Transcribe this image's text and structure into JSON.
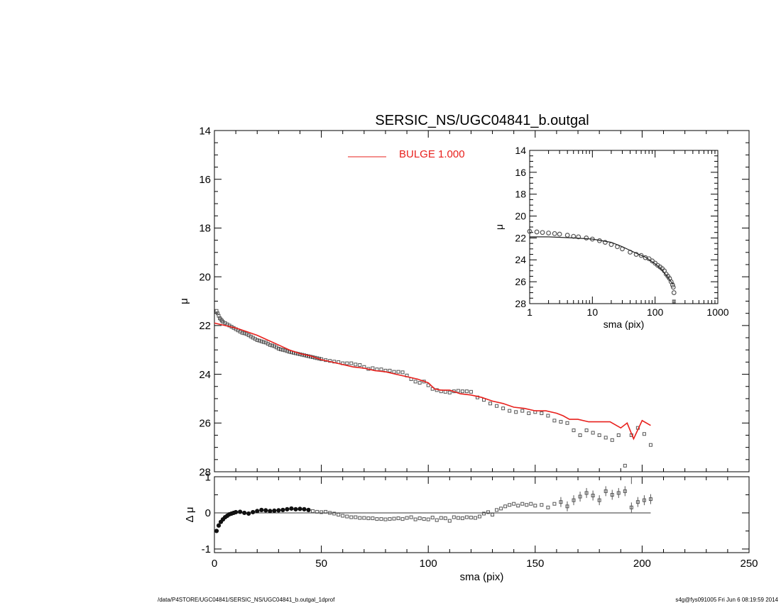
{
  "title": "SERSIC_NS/UGC04841_b.outgal",
  "footer": {
    "left": "/data/P4STORE/UGC04841/SERSIC_NS/UGC04841_b.outgal_1dprof",
    "right": "s4g@fys091005  Fri Jun  6 08:19:59 2014"
  },
  "colors": {
    "data": "#555555",
    "model": "#e8201c",
    "axis": "#000000"
  },
  "chart_data": [
    {
      "id": "main",
      "type": "scatter",
      "xlabel": "",
      "ylabel": "μ",
      "xlim": [
        0,
        250
      ],
      "ylim": [
        28,
        14
      ],
      "xticks": [
        0,
        50,
        100,
        150,
        200,
        250
      ],
      "yticks": [
        14,
        16,
        18,
        20,
        22,
        24,
        26,
        28
      ],
      "legend": {
        "label": "BULGE  1.000",
        "placement": "top-center"
      },
      "series": [
        {
          "role": "observed",
          "marker": "square",
          "x": [
            1,
            1.5,
            2,
            2.5,
            3,
            3.5,
            4,
            5,
            6,
            7,
            8,
            9,
            10,
            11,
            12,
            13,
            14,
            15,
            16,
            17,
            18,
            19,
            20,
            21,
            22,
            23,
            24,
            25,
            26,
            27,
            28,
            29,
            30,
            31,
            32,
            33,
            34,
            35,
            36,
            37,
            38,
            39,
            40,
            41,
            42,
            43,
            44,
            45,
            46,
            47,
            48,
            49,
            50,
            52,
            54,
            56,
            58,
            60,
            62,
            64,
            66,
            68,
            70,
            72,
            74,
            76,
            78,
            80,
            82,
            84,
            86,
            88,
            90,
            92,
            94,
            96,
            98,
            100,
            102,
            104,
            106,
            108,
            110,
            112,
            114,
            116,
            118,
            120,
            123,
            126,
            129,
            132,
            135,
            138,
            141,
            144,
            147,
            150,
            153,
            156,
            159,
            162,
            165,
            168,
            171,
            174,
            177,
            180,
            183,
            186,
            189,
            192,
            195,
            198,
            201,
            204
          ],
          "y": [
            21.4,
            21.5,
            21.6,
            21.7,
            21.75,
            21.8,
            21.85,
            21.9,
            21.95,
            22.0,
            22.05,
            22.1,
            22.15,
            22.2,
            22.25,
            22.3,
            22.32,
            22.35,
            22.4,
            22.45,
            22.5,
            22.55,
            22.6,
            22.62,
            22.65,
            22.68,
            22.7,
            22.75,
            22.8,
            22.82,
            22.85,
            22.9,
            22.95,
            22.98,
            23.0,
            23.02,
            23.05,
            23.08,
            23.1,
            23.12,
            23.14,
            23.16,
            23.18,
            23.2,
            23.22,
            23.24,
            23.26,
            23.28,
            23.3,
            23.32,
            23.34,
            23.36,
            23.38,
            23.42,
            23.45,
            23.48,
            23.5,
            23.55,
            23.55,
            23.55,
            23.6,
            23.62,
            23.7,
            23.78,
            23.75,
            23.8,
            23.8,
            23.85,
            23.85,
            23.9,
            23.9,
            23.92,
            24.05,
            24.2,
            24.3,
            24.35,
            24.3,
            24.45,
            24.6,
            24.65,
            24.7,
            24.72,
            24.75,
            24.7,
            24.68,
            24.7,
            24.7,
            24.72,
            24.95,
            25.05,
            25.2,
            25.3,
            25.4,
            25.5,
            25.55,
            25.5,
            25.6,
            25.55,
            25.6,
            25.7,
            25.9,
            25.95,
            26.0,
            26.3,
            26.5,
            26.3,
            26.4,
            26.5,
            26.6,
            26.7,
            26.5,
            27.75,
            26.5,
            26.2,
            26.45,
            26.9
          ]
        },
        {
          "role": "model",
          "name": "BULGE  1.000",
          "x": [
            0,
            5,
            10,
            15,
            20,
            25,
            30,
            35,
            40,
            45,
            50,
            55,
            60,
            65,
            70,
            75,
            80,
            85,
            90,
            95,
            100,
            103,
            106,
            110,
            115,
            120,
            125,
            130,
            135,
            140,
            145,
            150,
            155,
            160,
            163,
            166,
            170,
            175,
            180,
            185,
            190,
            193,
            196,
            200,
            204
          ],
          "y": [
            21.9,
            22.0,
            22.1,
            22.25,
            22.4,
            22.6,
            22.8,
            23.0,
            23.15,
            23.25,
            23.4,
            23.5,
            23.6,
            23.7,
            23.75,
            23.85,
            23.9,
            24.0,
            24.1,
            24.2,
            24.35,
            24.6,
            24.65,
            24.65,
            24.8,
            24.85,
            24.95,
            25.1,
            25.2,
            25.35,
            25.4,
            25.5,
            25.5,
            25.6,
            25.7,
            25.85,
            25.85,
            25.95,
            25.95,
            25.95,
            26.2,
            26.0,
            26.65,
            25.9,
            26.1
          ]
        }
      ]
    },
    {
      "id": "residual",
      "type": "scatter",
      "xlabel": "sma (pix)",
      "ylabel": "Δ μ",
      "xlim": [
        0,
        250
      ],
      "ylim": [
        -1.1,
        1.0
      ],
      "xticks": [
        0,
        50,
        100,
        150,
        200,
        250
      ],
      "yticks": [
        -1,
        0,
        1
      ],
      "reference_line": 0,
      "series": [
        {
          "role": "residual",
          "marker": "square",
          "x": [
            1,
            2,
            3,
            4,
            5,
            6,
            7,
            8,
            9,
            10,
            12,
            14,
            16,
            18,
            20,
            22,
            24,
            26,
            28,
            30,
            32,
            34,
            36,
            38,
            40,
            42,
            44,
            46,
            48,
            50,
            52,
            54,
            56,
            58,
            60,
            62,
            64,
            66,
            68,
            70,
            72,
            74,
            76,
            78,
            80,
            82,
            84,
            86,
            88,
            90,
            92,
            94,
            96,
            98,
            100,
            102,
            104,
            106,
            108,
            110,
            112,
            114,
            116,
            118,
            120,
            122,
            124,
            126,
            128,
            130,
            132,
            134,
            136,
            138,
            140,
            142,
            144,
            146,
            148,
            150,
            153,
            156,
            159,
            162,
            165,
            168,
            171,
            174,
            177,
            180,
            183,
            186,
            189,
            192,
            195,
            198,
            201,
            204
          ],
          "y": [
            -0.5,
            -0.35,
            -0.25,
            -0.18,
            -0.12,
            -0.08,
            -0.04,
            -0.02,
            0.0,
            0.02,
            0.03,
            0.0,
            -0.02,
            0.02,
            0.05,
            0.08,
            0.07,
            0.05,
            0.06,
            0.07,
            0.08,
            0.1,
            0.12,
            0.1,
            0.11,
            0.1,
            0.08,
            0.05,
            0.03,
            0.02,
            0.03,
            0.0,
            -0.02,
            -0.05,
            -0.08,
            -0.1,
            -0.12,
            -0.12,
            -0.14,
            -0.14,
            -0.15,
            -0.15,
            -0.17,
            -0.17,
            -0.18,
            -0.17,
            -0.16,
            -0.15,
            -0.17,
            -0.14,
            -0.12,
            -0.18,
            -0.15,
            -0.17,
            -0.18,
            -0.13,
            -0.2,
            -0.14,
            -0.15,
            -0.22,
            -0.12,
            -0.14,
            -0.15,
            -0.12,
            -0.13,
            -0.14,
            -0.1,
            -0.02,
            0.02,
            -0.05,
            0.08,
            0.12,
            0.18,
            0.22,
            0.25,
            0.2,
            0.25,
            0.22,
            0.25,
            0.2,
            0.22,
            0.15,
            0.25,
            0.3,
            0.18,
            0.35,
            0.45,
            0.55,
            0.48,
            0.35,
            0.6,
            0.5,
            0.55,
            0.6,
            0.15,
            0.3,
            0.35,
            0.38
          ]
        }
      ]
    },
    {
      "id": "inset",
      "type": "scatter",
      "xscale": "log",
      "xlabel": "sma (pix)",
      "ylabel": "μ",
      "xlim": [
        1,
        1000
      ],
      "ylim": [
        28,
        14
      ],
      "xticks": [
        1,
        10,
        100,
        1000
      ],
      "yticks": [
        14,
        16,
        18,
        20,
        22,
        24,
        26,
        28
      ],
      "series": [
        {
          "role": "observed",
          "marker": "circle",
          "x": [
            1,
            1.3,
            1.6,
            2,
            2.5,
            3,
            4,
            5,
            6,
            8,
            10,
            13,
            16,
            20,
            25,
            30,
            40,
            50,
            60,
            70,
            80,
            90,
            100,
            110,
            120,
            130,
            140,
            150,
            160,
            170,
            180,
            190,
            195,
            200
          ],
          "y": [
            21.4,
            21.45,
            21.5,
            21.55,
            21.6,
            21.65,
            21.75,
            21.85,
            21.9,
            22.0,
            22.1,
            22.25,
            22.4,
            22.6,
            22.8,
            23.0,
            23.3,
            23.5,
            23.6,
            23.8,
            23.9,
            24.1,
            24.3,
            24.5,
            24.65,
            24.8,
            25.0,
            25.3,
            25.5,
            25.7,
            26.0,
            26.3,
            26.5,
            27.0
          ]
        },
        {
          "role": "model",
          "x": [
            1,
            2,
            5,
            10,
            20,
            30,
            50,
            70,
            100,
            130,
            160,
            190,
            200
          ],
          "y": [
            21.9,
            21.9,
            22.0,
            22.1,
            22.4,
            22.8,
            23.4,
            23.75,
            24.35,
            24.95,
            25.6,
            26.2,
            26.1
          ]
        }
      ]
    }
  ]
}
